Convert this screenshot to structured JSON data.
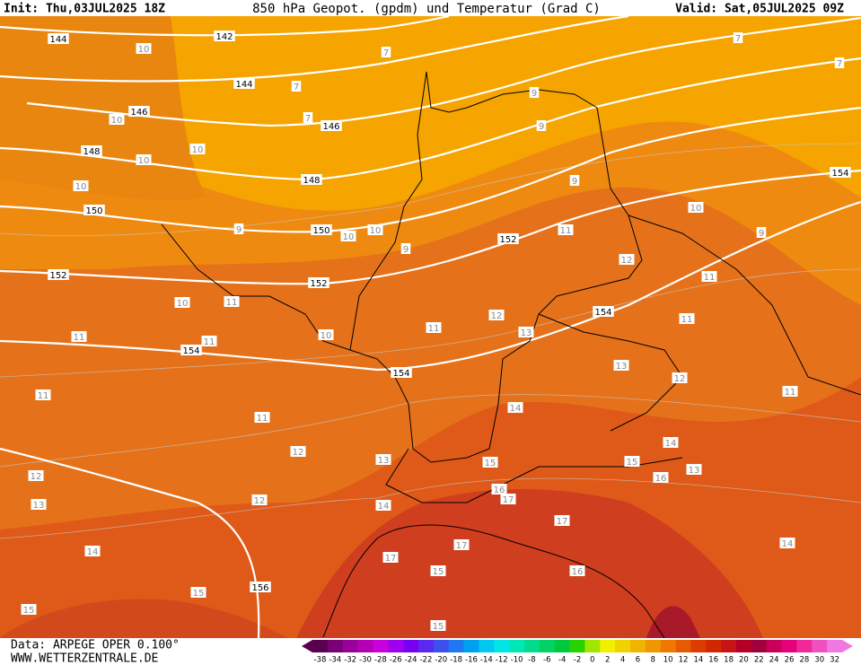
{
  "header": {
    "init": "Init: Thu,03JUL2025 18Z",
    "title": "850 hPa Geopot. (gpdm) und Temperatur (Grad C)",
    "valid": "Valid: Sat,05JUL2025 09Z"
  },
  "footer": {
    "data": "Data: ARPEGE OPER 0.100°",
    "url": "WWW.WETTERZENTRALE.DE"
  },
  "legend": {
    "labels": [
      "-38",
      "-34",
      "-32",
      "-30",
      "-28",
      "-26",
      "-24",
      "-22",
      "-20",
      "-18",
      "-16",
      "-14",
      "-12",
      "-10",
      "-8",
      "-6",
      "-4",
      "-2",
      "0",
      "2",
      "4",
      "6",
      "8",
      "10",
      "12",
      "14",
      "16",
      "18",
      "20",
      "22",
      "24",
      "26",
      "28",
      "30",
      "32"
    ],
    "colors": [
      "#5a0050",
      "#7a0078",
      "#9a009a",
      "#b400b4",
      "#c800dc",
      "#a000f0",
      "#7800f0",
      "#5a28f0",
      "#3c50f0",
      "#1e78f0",
      "#00a0f0",
      "#00c8f0",
      "#00e6e6",
      "#00e6b4",
      "#00dc8c",
      "#00d264",
      "#00c83c",
      "#28d200",
      "#a0e600",
      "#f0f000",
      "#f0d200",
      "#f0b400",
      "#f09600",
      "#f07800",
      "#e65a00",
      "#dc3c00",
      "#d22800",
      "#c81414",
      "#b40028",
      "#a0003c",
      "#c8005a",
      "#e6007a",
      "#f0289a",
      "#f050c0",
      "#f078e0"
    ]
  },
  "map": {
    "geopotential_labels": [
      "142",
      "144",
      "144",
      "146",
      "146",
      "148",
      "148",
      "150",
      "150",
      "152",
      "152",
      "152",
      "154",
      "154",
      "154",
      "154",
      "156"
    ],
    "temperature_labels": [
      "7",
      "7",
      "7",
      "7",
      "7",
      "9",
      "9",
      "9",
      "9",
      "9",
      "9",
      "10",
      "10",
      "10",
      "10",
      "10",
      "10",
      "10",
      "10",
      "10",
      "10",
      "11",
      "11",
      "11",
      "11",
      "11",
      "11",
      "11",
      "11",
      "11",
      "11",
      "12",
      "12",
      "12",
      "12",
      "12",
      "12",
      "13",
      "13",
      "13",
      "13",
      "13",
      "14",
      "14",
      "14",
      "14",
      "14",
      "15",
      "15",
      "15",
      "15",
      "15",
      "15",
      "16",
      "16",
      "16",
      "17",
      "17",
      "17",
      "17"
    ]
  }
}
